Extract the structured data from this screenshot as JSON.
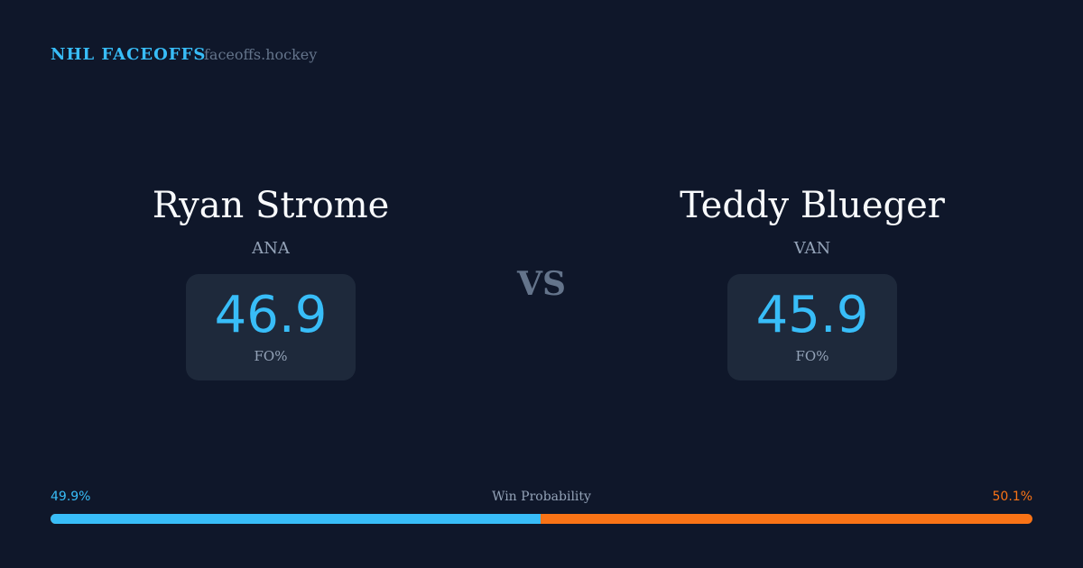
{
  "header": {
    "brand": "NHL FACEOFFS",
    "site": "faceoffs.hockey"
  },
  "players": [
    {
      "name": "Ryan Strome",
      "team": "ANA",
      "fo_pct": "46.9",
      "fo_label": "FO%"
    },
    {
      "name": "Teddy Blueger",
      "team": "VAN",
      "fo_pct": "45.9",
      "fo_label": "FO%"
    }
  ],
  "vs": "VS",
  "win_probability": {
    "label": "Win Probability",
    "left": "49.9%",
    "right": "50.1%",
    "left_value": 49.9,
    "left_color": "#38bdf8",
    "right_color": "#f97316"
  }
}
